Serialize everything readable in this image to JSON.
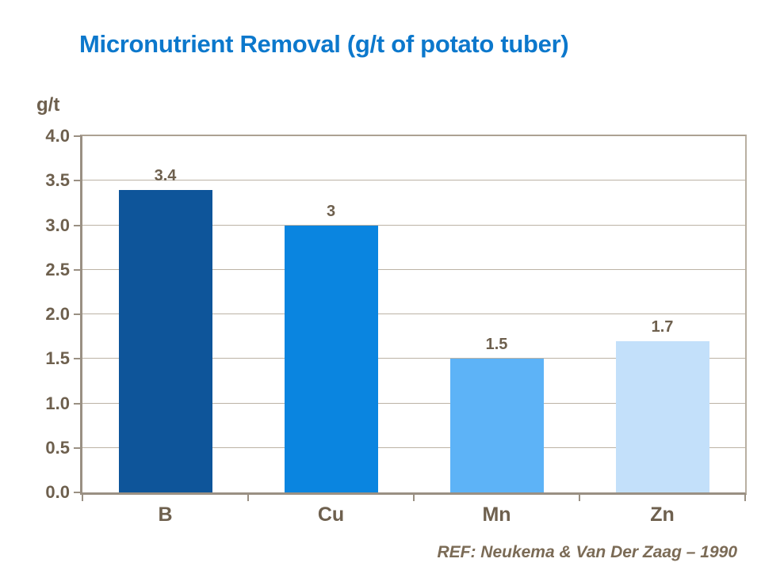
{
  "title": "Micronutrient Removal (g/t of potato tuber)",
  "axis_label": "g/t",
  "reference": "REF: Neukema & Van Der Zaag – 1990",
  "colors": {
    "title_blue": "#0C78CC",
    "text_brown": "#6E604E",
    "ref_brown": "#7B6B56",
    "axis_line": "#9A9083",
    "grid_line": "#BCB3A5",
    "top_border": "#ACA192",
    "right_border": "#B9B0A2",
    "background": "#FFFFFF"
  },
  "chart_data": {
    "type": "bar",
    "title": "Micronutrient Removal (g/t of potato tuber)",
    "categories": [
      "B",
      "Cu",
      "Mn",
      "Zn"
    ],
    "values": [
      3.4,
      3,
      1.5,
      1.7
    ],
    "value_labels": [
      "3.4",
      "3",
      "1.5",
      "1.7"
    ],
    "bar_colors": [
      "#0E559A",
      "#0A85E0",
      "#5DB3F7",
      "#C3E0FA"
    ],
    "xlabel": "",
    "ylabel": "g/t",
    "ylim": [
      0,
      4
    ],
    "ytick_step": 0.5,
    "yticks": [
      "4.0",
      "3.5",
      "3.0",
      "2.5",
      "2.0",
      "1.5",
      "1.0",
      "0.5",
      "0.0"
    ],
    "grid": true,
    "legend": false,
    "annotation": "REF: Neukema & Van Der Zaag – 1990"
  }
}
